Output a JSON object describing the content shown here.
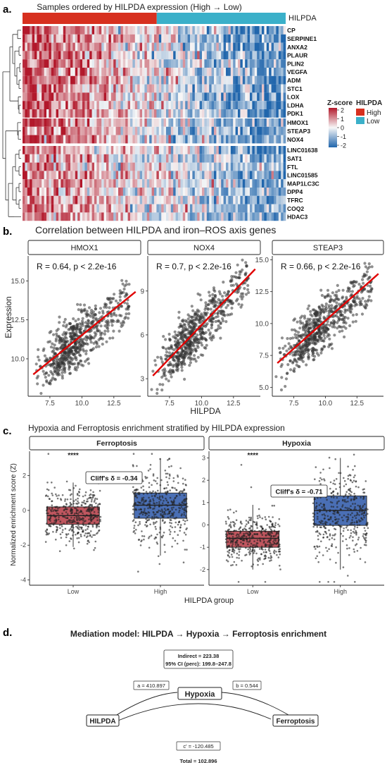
{
  "panels": {
    "a": {
      "letter": "a."
    },
    "b": {
      "letter": "b."
    },
    "c": {
      "letter": "c."
    },
    "d": {
      "letter": "d."
    }
  },
  "chart_data": [
    {
      "type": "heatmap",
      "title": "Samples ordered by HILPDA expression (High → Low)",
      "annotation_label": "HILPDA",
      "annotation_split_fraction": 0.51,
      "row_groups": [
        {
          "genes": [
            "CP",
            "SERPINE1",
            "ANXA2",
            "PLAUR",
            "PLIN2",
            "VEGFA",
            "ADM",
            "STC1",
            "LOX",
            "LDHA",
            "PDK1"
          ]
        },
        {
          "genes": [
            "HMOX1",
            "STEAP3",
            "NOX4"
          ]
        },
        {
          "genes": [
            "LINC01638",
            "SAT1",
            "FTL",
            "LINC01585",
            "MAP1LC3C",
            "DPP4",
            "TFRC",
            "COQ2",
            "HDAC3"
          ]
        }
      ],
      "zscore_legend": {
        "title": "Z-score",
        "ticks": [
          "2",
          "1",
          "0",
          "-1",
          "-2"
        ],
        "high_color": "#b2182b",
        "mid_color": "#f7f7f7",
        "low_color": "#2166ac"
      },
      "group_legend": {
        "title": "HILPDA",
        "items": [
          {
            "label": "High",
            "color": "#d7301f"
          },
          {
            "label": "Low",
            "color": "#3bb0c9"
          }
        ]
      }
    },
    {
      "type": "scatter",
      "title": "Correlation between HILPDA and iron–ROS axis genes",
      "xlabel": "HILPDA",
      "ylabel": "Expression",
      "x_ticks": [
        "7.5",
        "10.0",
        "12.5"
      ],
      "xlim": [
        5.8,
        14.6
      ],
      "facets": [
        {
          "name": "HMOX1",
          "r_label": "R = 0.64, p < 2.2e-16",
          "yticks": [
            "10.0",
            "12.5",
            "15.0"
          ],
          "ytick_values": [
            10,
            12.5,
            15
          ],
          "ylim": [
            7.6,
            16.6
          ],
          "line": [
            [
              6.2,
              9.0
            ],
            [
              14.2,
              14.3
            ]
          ]
        },
        {
          "name": "NOX4",
          "r_label": "R = 0.7, p < 2.2e-16",
          "yticks": [
            "3",
            "6",
            "9"
          ],
          "ytick_values": [
            3,
            6,
            9
          ],
          "ylim": [
            1.8,
            11.4
          ],
          "line": [
            [
              6.2,
              3.2
            ],
            [
              14.2,
              10.5
            ]
          ]
        },
        {
          "name": "STEAP3",
          "r_label": "R = 0.66, p < 2.2e-16",
          "yticks": [
            "5.0",
            "7.5",
            "10.0",
            "12.5",
            "15.0"
          ],
          "ytick_values": [
            5,
            7.5,
            10,
            12.5,
            15
          ],
          "ylim": [
            4.3,
            15.3
          ],
          "line": [
            [
              6.2,
              6.9
            ],
            [
              14.2,
              13.9
            ]
          ]
        }
      ]
    },
    {
      "type": "box",
      "title": "Hypoxia and Ferroptosis enrichment stratified by HILPDA expression",
      "xlabel": "HILPDA group",
      "ylabel": "Normalized enrichment score (Z)",
      "categories": [
        "Low",
        "High"
      ],
      "significance": "****",
      "facets": [
        {
          "name": "Ferroptosis",
          "cliffs": "Cliff's δ = -0.34",
          "yticks": [
            "-4",
            "-2",
            "0",
            "2"
          ],
          "ytick_values": [
            -4,
            -2,
            0,
            2
          ],
          "ylim": [
            -4.3,
            3.4
          ],
          "boxes": [
            {
              "group": "Low",
              "q1": -0.8,
              "median": -0.3,
              "q3": 0.2,
              "whisker_low": -2.1,
              "whisker_high": 1.6,
              "color": "#c0565f"
            },
            {
              "group": "High",
              "q1": -0.45,
              "median": 0.3,
              "q3": 1.0,
              "whisker_low": -2.6,
              "whisker_high": 3.0,
              "color": "#4a6fb5"
            }
          ]
        },
        {
          "name": "Hypoxia",
          "cliffs": "Cliff's δ = -0.71",
          "yticks": [
            "-2",
            "-1",
            "0",
            "1",
            "2",
            "3"
          ],
          "ytick_values": [
            -2,
            -1,
            0,
            1,
            2,
            3
          ],
          "ylim": [
            -2.7,
            3.3
          ],
          "boxes": [
            {
              "group": "Low",
              "q1": -1.0,
              "median": -0.6,
              "q3": -0.28,
              "whisker_low": -2.0,
              "whisker_high": 0.9,
              "color": "#c0565f"
            },
            {
              "group": "High",
              "q1": -0.02,
              "median": 0.65,
              "q3": 1.3,
              "whisker_low": -2.0,
              "whisker_high": 3.0,
              "color": "#4a6fb5"
            }
          ]
        }
      ]
    },
    {
      "type": "diagram",
      "title": "Mediation model: HILPDA → Hypoxia → Ferroptosis enrichment",
      "nodes": {
        "x": "HILPDA",
        "m": "Hypoxia",
        "y": "Ferroptosis"
      },
      "indirect_label": "Indirect = 223.38",
      "ci_label": "95% CI (perc): 199.8–247.8",
      "a_label": "a = 410.897",
      "b_label": "b = 0.544",
      "cprime_label": "c' = -120.485",
      "total_label": "Total = 102.896"
    }
  ]
}
